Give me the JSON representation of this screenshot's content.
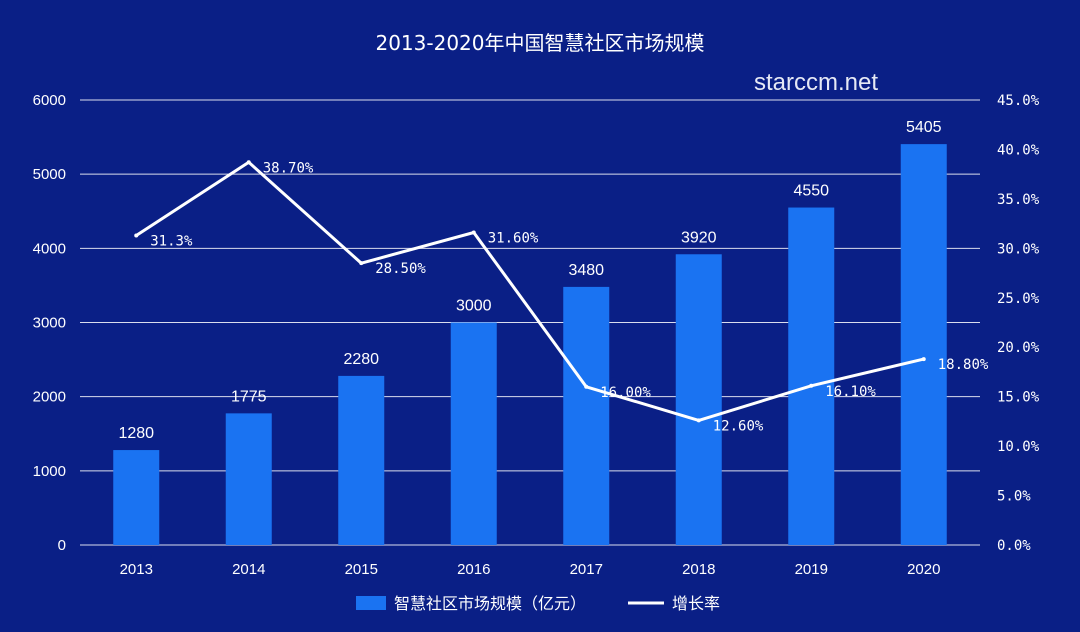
{
  "chart_data": {
    "type": "bar",
    "title": "2013-2020年中国智慧社区市场规模",
    "watermark": "starccm.net",
    "categories": [
      "2013",
      "2014",
      "2015",
      "2016",
      "2017",
      "2018",
      "2019",
      "2020"
    ],
    "series": [
      {
        "name": "智慧社区市场规模（亿元）",
        "type": "bar",
        "axis": "left",
        "values": [
          1280,
          1775,
          2280,
          3000,
          3480,
          3920,
          4550,
          5405
        ],
        "labels": [
          "1280",
          "1775",
          "2280",
          "3000",
          "3480",
          "3920",
          "4550",
          "5405"
        ]
      },
      {
        "name": "增长率",
        "type": "line",
        "axis": "right",
        "values": [
          31.3,
          38.7,
          28.5,
          31.6,
          16.0,
          12.6,
          16.1,
          18.8
        ],
        "labels": [
          "31.3%",
          "38.70%",
          "28.50%",
          "31.60%",
          "16.00%",
          "12.60%",
          "16.10%",
          "18.80%"
        ]
      }
    ],
    "ylim_left": [
      0,
      6000
    ],
    "yticks_left": [
      "0",
      "1000",
      "2000",
      "3000",
      "4000",
      "5000",
      "6000"
    ],
    "ylim_right": [
      0,
      45
    ],
    "yticks_right": [
      "0.0%",
      "5.0%",
      "10.0%",
      "15.0%",
      "20.0%",
      "25.0%",
      "30.0%",
      "35.0%",
      "40.0%",
      "45.0%"
    ],
    "grid": true,
    "legend": "bottom-center",
    "colors": {
      "background": "#0a1f86",
      "bar": "#1a73f2",
      "line": "#ffffff",
      "text": "#ffffff"
    }
  }
}
